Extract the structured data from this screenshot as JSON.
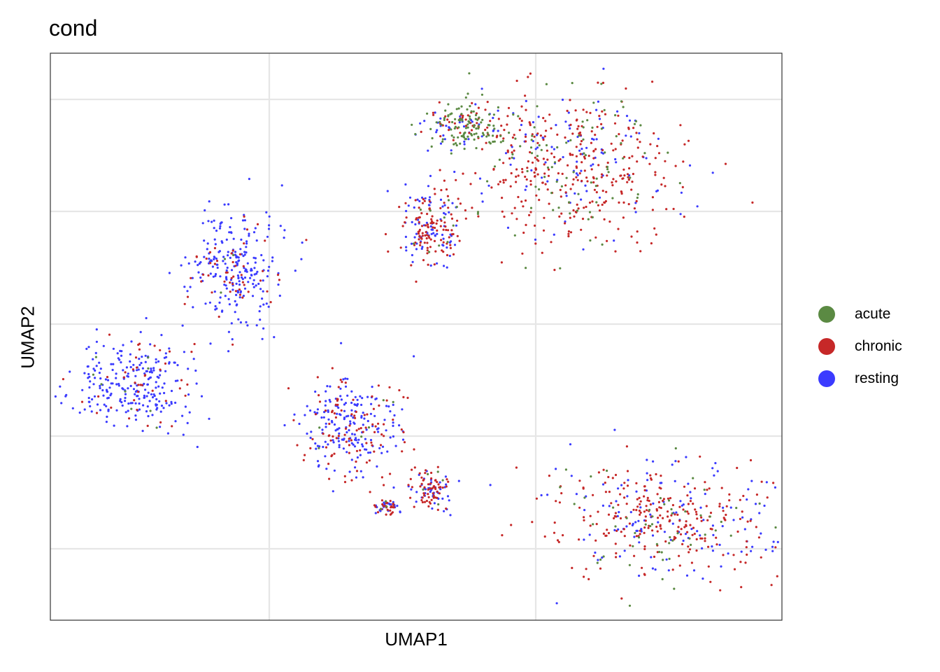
{
  "chart_data": {
    "type": "scatter",
    "title": "cond",
    "xlabel": "UMAP1",
    "ylabel": "UMAP2",
    "xlim": [
      0,
      100
    ],
    "ylim": [
      0,
      100
    ],
    "grid": true,
    "tick_labels_shown": false,
    "legend_position": "right",
    "series": [
      {
        "name": "acute",
        "color": "#5b8a43"
      },
      {
        "name": "chronic",
        "color": "#c62828"
      },
      {
        "name": "resting",
        "color": "#3b3bff"
      }
    ],
    "clusters": [
      {
        "name": "top-right-large",
        "center": [
          71,
          80
        ],
        "spread": [
          15,
          14
        ],
        "mix": {
          "acute": 0.18,
          "chronic": 0.62,
          "resting": 0.2
        }
      },
      {
        "name": "top-right-green-arm",
        "center": [
          57,
          87
        ],
        "spread": [
          6,
          4
        ],
        "mix": {
          "acute": 0.55,
          "chronic": 0.25,
          "resting": 0.2
        }
      },
      {
        "name": "top-right-left-lobe",
        "center": [
          52,
          69
        ],
        "spread": [
          4,
          7
        ],
        "mix": {
          "acute": 0.05,
          "chronic": 0.55,
          "resting": 0.4
        }
      },
      {
        "name": "bottom-right-large",
        "center": [
          84,
          18
        ],
        "spread": [
          15,
          10
        ],
        "mix": {
          "acute": 0.12,
          "chronic": 0.58,
          "resting": 0.3
        }
      },
      {
        "name": "mid-center",
        "center": [
          41,
          34
        ],
        "spread": [
          7,
          9
        ],
        "mix": {
          "acute": 0.02,
          "chronic": 0.35,
          "resting": 0.63
        }
      },
      {
        "name": "mid-left-upper",
        "center": [
          25,
          62
        ],
        "spread": [
          6,
          10
        ],
        "mix": {
          "acute": 0.01,
          "chronic": 0.18,
          "resting": 0.81
        }
      },
      {
        "name": "far-left",
        "center": [
          12,
          42
        ],
        "spread": [
          8,
          8
        ],
        "mix": {
          "acute": 0.03,
          "chronic": 0.14,
          "resting": 0.83
        }
      },
      {
        "name": "small-bottom-mid",
        "center": [
          52,
          23
        ],
        "spread": [
          2.5,
          3.5
        ],
        "mix": {
          "acute": 0.05,
          "chronic": 0.55,
          "resting": 0.4
        }
      },
      {
        "name": "tiny-dots",
        "center": [
          46,
          20
        ],
        "spread": [
          1.5,
          1.5
        ],
        "mix": {
          "acute": 0.05,
          "chronic": 0.45,
          "resting": 0.5
        }
      }
    ]
  }
}
